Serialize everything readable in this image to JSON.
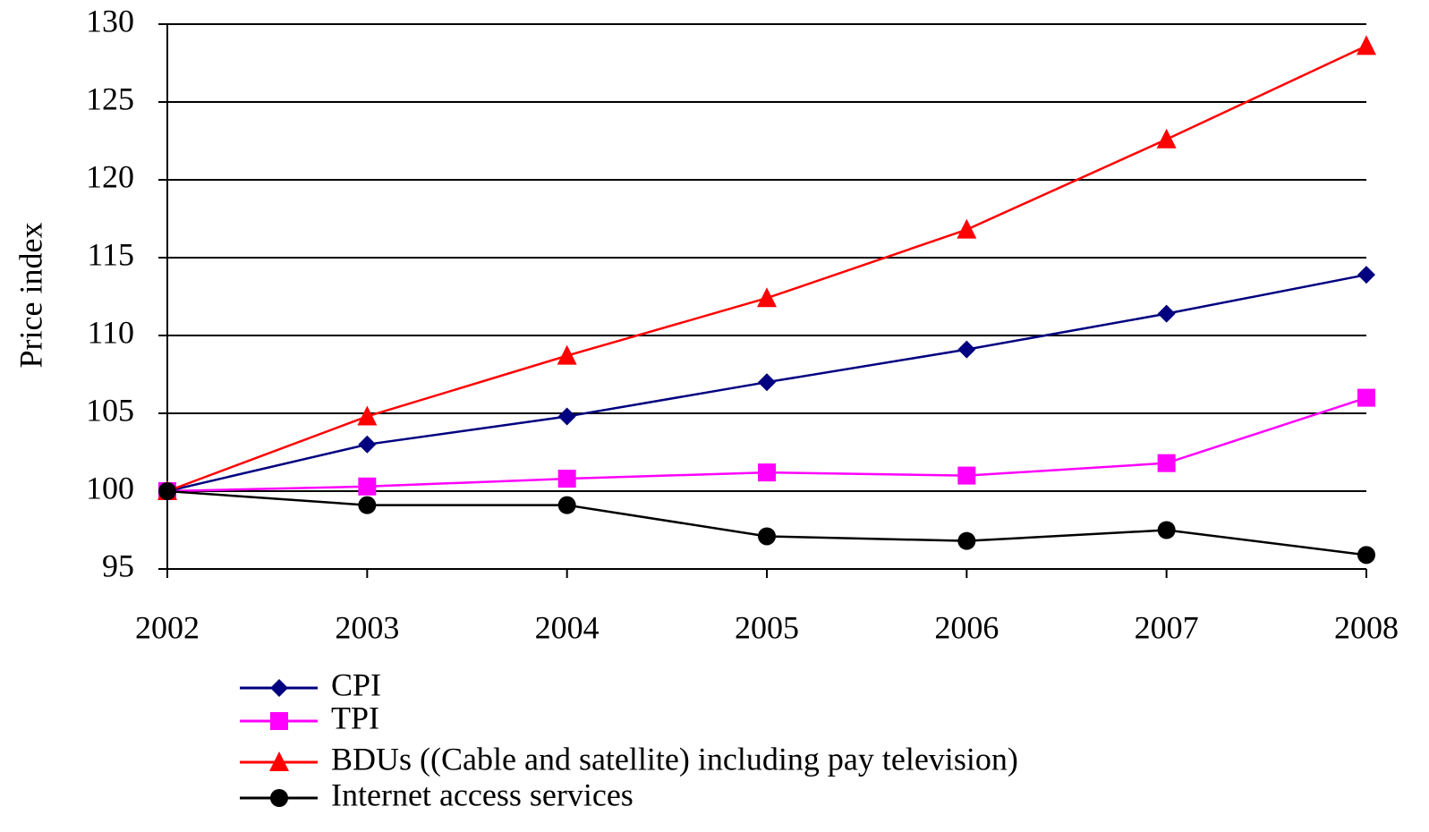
{
  "chart_data": {
    "type": "line",
    "y_axis_label": "Price index",
    "categories": [
      "2002",
      "2003",
      "2004",
      "2005",
      "2006",
      "2007",
      "2008"
    ],
    "series": [
      {
        "name": "CPI",
        "color": "#000080",
        "marker": "diamond",
        "values": [
          100,
          103,
          104.8,
          107,
          109.1,
          111.4,
          113.9
        ]
      },
      {
        "name": "TPI",
        "color": "#ff00ff",
        "marker": "square",
        "values": [
          100,
          100.3,
          100.8,
          101.2,
          101,
          101.8,
          106
        ]
      },
      {
        "name": "BDUs ((Cable and satellite) including pay television)",
        "color": "#ff0000",
        "marker": "triangle",
        "values": [
          100,
          104.8,
          108.7,
          112.4,
          116.8,
          122.6,
          128.6
        ]
      },
      {
        "name": "Internet access services",
        "color": "#000000",
        "marker": "circle",
        "values": [
          100,
          99.1,
          99.1,
          97.1,
          96.8,
          97.5,
          95.9
        ]
      }
    ],
    "ylim": [
      95,
      130
    ],
    "yticks": [
      95,
      100,
      105,
      110,
      115,
      120,
      125,
      130
    ],
    "grid": true
  }
}
